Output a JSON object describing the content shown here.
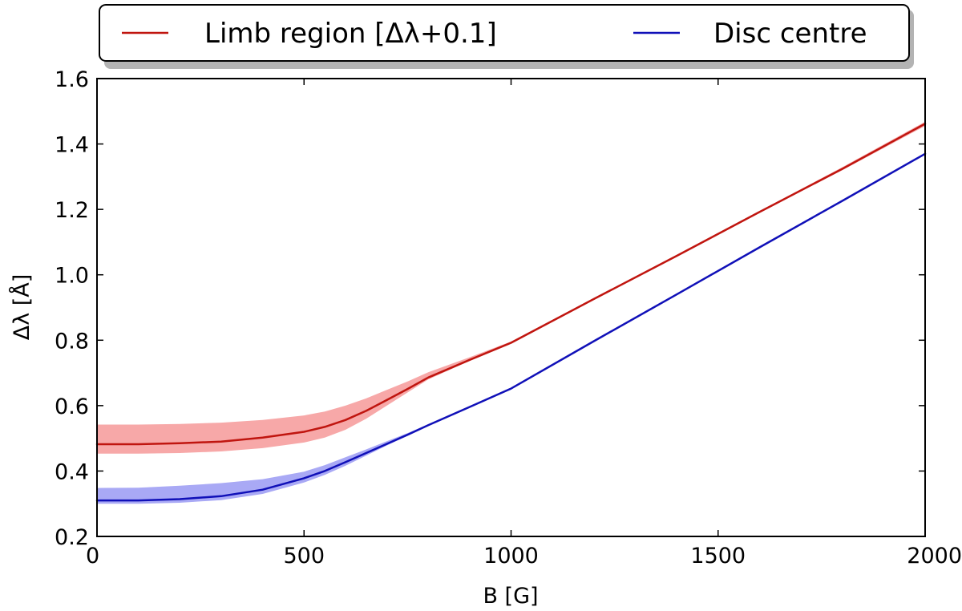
{
  "chart_data": {
    "type": "line",
    "xlabel": "B [G]",
    "ylabel": "Δλ [Å]",
    "xlim": [
      0,
      2000
    ],
    "ylim": [
      0.2,
      1.6
    ],
    "xticks": [
      0,
      500,
      1000,
      1500,
      2000
    ],
    "yticks": [
      0.2,
      0.4,
      0.6,
      0.8,
      1.0,
      1.2,
      1.4,
      1.6
    ],
    "xtick_labels": [
      "0",
      "500",
      "1000",
      "1500",
      "2000"
    ],
    "ytick_labels": [
      "0.2",
      "0.4",
      "0.6",
      "0.8",
      "1.0",
      "1.2",
      "1.4",
      "1.6"
    ],
    "grid": false,
    "legend_position": "top-outside",
    "series": [
      {
        "name": "Limb region [Δλ+0.1]",
        "color": "#c0150f",
        "band_color": "#f7a8a8",
        "x": [
          0,
          100,
          200,
          300,
          400,
          500,
          550,
          600,
          650,
          700,
          750,
          800,
          900,
          1000,
          1200,
          1400,
          1600,
          1800,
          2000
        ],
        "y": [
          0.482,
          0.482,
          0.485,
          0.49,
          0.502,
          0.52,
          0.535,
          0.556,
          0.584,
          0.617,
          0.651,
          0.686,
          0.74,
          0.792,
          0.926,
          1.058,
          1.192,
          1.324,
          1.462
        ],
        "lower": [
          0.453,
          0.453,
          0.455,
          0.46,
          0.47,
          0.487,
          0.502,
          0.526,
          0.56,
          0.6,
          0.64,
          0.68,
          0.737,
          0.791,
          0.925,
          1.057,
          1.19,
          1.32,
          1.455
        ],
        "upper": [
          0.542,
          0.542,
          0.544,
          0.548,
          0.556,
          0.57,
          0.582,
          0.6,
          0.622,
          0.648,
          0.674,
          0.702,
          0.748,
          0.796,
          0.929,
          1.061,
          1.195,
          1.329,
          1.468
        ]
      },
      {
        "name": "Disc centre",
        "color": "#1010b8",
        "band_color": "#a9a9f5",
        "x": [
          0,
          100,
          200,
          300,
          400,
          500,
          550,
          600,
          650,
          700,
          750,
          800,
          900,
          1000,
          1200,
          1400,
          1600,
          1800,
          2000
        ],
        "y": [
          0.31,
          0.31,
          0.314,
          0.323,
          0.343,
          0.378,
          0.4,
          0.427,
          0.455,
          0.483,
          0.511,
          0.54,
          0.596,
          0.652,
          0.797,
          0.94,
          1.084,
          1.226,
          1.37
        ],
        "lower": [
          0.3,
          0.3,
          0.303,
          0.311,
          0.33,
          0.365,
          0.388,
          0.416,
          0.447,
          0.478,
          0.508,
          0.538,
          0.595,
          0.651,
          0.796,
          0.939,
          1.083,
          1.225,
          1.368
        ],
        "upper": [
          0.348,
          0.349,
          0.355,
          0.363,
          0.375,
          0.398,
          0.418,
          0.442,
          0.466,
          0.491,
          0.516,
          0.543,
          0.598,
          0.654,
          0.799,
          0.942,
          1.086,
          1.228,
          1.372
        ]
      }
    ]
  }
}
